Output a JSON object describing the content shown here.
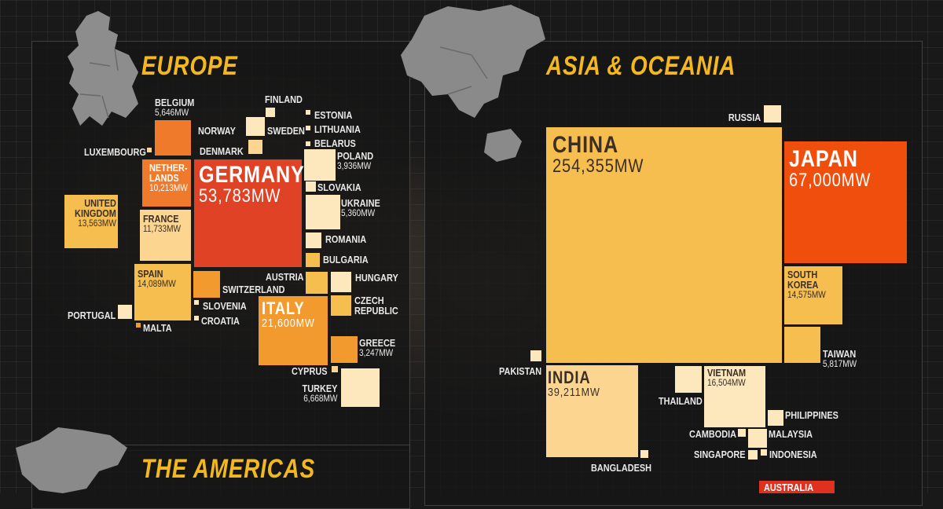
{
  "colors": {
    "background": "#191919",
    "heading": "#f4b81f",
    "scale": [
      "#fde7bd",
      "#fcd590",
      "#f6bd4f",
      "#f29a2e",
      "#ef7a2b",
      "#e04225",
      "#f04e0c"
    ]
  },
  "headings": {
    "europe": "EUROPE",
    "asia": "ASIA & OCEANIA",
    "americas": "THE AMERICAS"
  },
  "australia_label": "AUSTRALIA",
  "chart_data": [
    {
      "type": "treemap",
      "title": "EUROPE",
      "unit": "MW",
      "items": [
        {
          "name": "FINLAND"
        },
        {
          "name": "NORWAY"
        },
        {
          "name": "SWEDEN"
        },
        {
          "name": "ESTONIA"
        },
        {
          "name": "LITHUANIA"
        },
        {
          "name": "BELARUS"
        },
        {
          "name": "DENMARK"
        },
        {
          "name": "BELGIUM",
          "value_label": "5,646MW",
          "value": 5646
        },
        {
          "name": "LUXEMBOURG"
        },
        {
          "name": "NETHER-LANDS",
          "value_label": "10,213MW",
          "value": 10213
        },
        {
          "name": "GERMANY",
          "value_label": "53,783MW",
          "value": 53783
        },
        {
          "name": "POLAND",
          "value_label": "3,936MW",
          "value": 3936
        },
        {
          "name": "SLOVAKIA"
        },
        {
          "name": "UNITED KINGDOM",
          "value_label": "13,563MW",
          "value": 13563
        },
        {
          "name": "FRANCE",
          "value_label": "11,733MW",
          "value": 11733
        },
        {
          "name": "UKRAINE",
          "value_label": "5,360MW",
          "value": 5360
        },
        {
          "name": "ROMANIA"
        },
        {
          "name": "BULGARIA"
        },
        {
          "name": "SPAIN",
          "value_label": "14,089MW",
          "value": 14089
        },
        {
          "name": "AUSTRIA"
        },
        {
          "name": "HUNGARY"
        },
        {
          "name": "SWITZERLAND"
        },
        {
          "name": "SLOVENIA"
        },
        {
          "name": "PORTUGAL"
        },
        {
          "name": "CROATIA"
        },
        {
          "name": "ITALY",
          "value_label": "21,600MW",
          "value": 21600
        },
        {
          "name": "CZECH REPUBLIC"
        },
        {
          "name": "MALTA"
        },
        {
          "name": "GREECE",
          "value_label": "3,247MW",
          "value": 3247
        },
        {
          "name": "CYPRUS"
        },
        {
          "name": "TURKEY",
          "value_label": "6,668MW",
          "value": 6668
        }
      ]
    },
    {
      "type": "treemap",
      "title": "ASIA & OCEANIA",
      "unit": "MW",
      "items": [
        {
          "name": "RUSSIA"
        },
        {
          "name": "CHINA",
          "value_label": "254,355MW",
          "value": 254355
        },
        {
          "name": "JAPAN",
          "value_label": "67,000MW",
          "value": 67000
        },
        {
          "name": "SOUTH KOREA",
          "value_label": "14,575MW",
          "value": 14575
        },
        {
          "name": "TAIWAN",
          "value_label": "5,817MW",
          "value": 5817
        },
        {
          "name": "PAKISTAN"
        },
        {
          "name": "INDIA",
          "value_label": "39,211MW",
          "value": 39211
        },
        {
          "name": "THAILAND"
        },
        {
          "name": "VIETNAM",
          "value_label": "16,504MW",
          "value": 16504
        },
        {
          "name": "PHILIPPINES"
        },
        {
          "name": "CAMBODIA"
        },
        {
          "name": "MALAYSIA"
        },
        {
          "name": "SINGAPORE"
        },
        {
          "name": "INDONESIA"
        },
        {
          "name": "BANGLADESH"
        }
      ]
    }
  ]
}
